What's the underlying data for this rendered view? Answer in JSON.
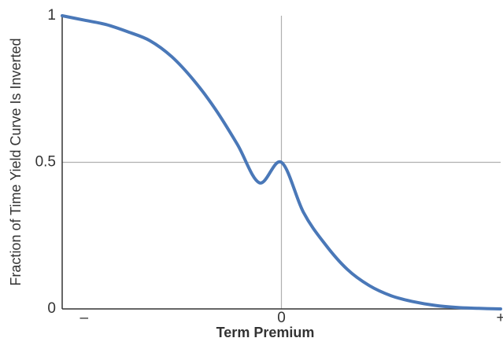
{
  "chart_data": {
    "type": "line",
    "title": "",
    "xlabel": "Term Premium",
    "ylabel": "Fraction of Time Yield Curve Is Inverted",
    "xlim": [
      -1,
      1
    ],
    "ylim": [
      0,
      1
    ],
    "x_ticks": [
      {
        "value": -0.9,
        "label": "–"
      },
      {
        "value": 0,
        "label": "0"
      },
      {
        "value": 1,
        "label": "+"
      }
    ],
    "y_ticks": [
      {
        "value": 0,
        "label": "0"
      },
      {
        "value": 0.5,
        "label": "0.5"
      },
      {
        "value": 1,
        "label": "1"
      }
    ],
    "grid": {
      "x": [
        0
      ],
      "y": [
        0.5
      ]
    },
    "line_color": "#4a78b8",
    "grid_color": "#b0b0b0",
    "axis_color": "#333333",
    "series": [
      {
        "x": [
          -1,
          -0.9,
          -0.8,
          -0.7,
          -0.6,
          -0.5,
          -0.4,
          -0.3,
          -0.2,
          -0.1,
          0,
          0.1,
          0.2,
          0.3,
          0.4,
          0.5,
          0.6,
          0.7,
          0.8,
          0.9,
          1
        ],
        "y": [
          1.0,
          0.985,
          0.97,
          0.945,
          0.915,
          0.86,
          0.78,
          0.68,
          0.56,
          0.43,
          0.5,
          0.33,
          0.22,
          0.135,
          0.08,
          0.045,
          0.025,
          0.012,
          0.005,
          0.002,
          0.0
        ]
      }
    ]
  }
}
